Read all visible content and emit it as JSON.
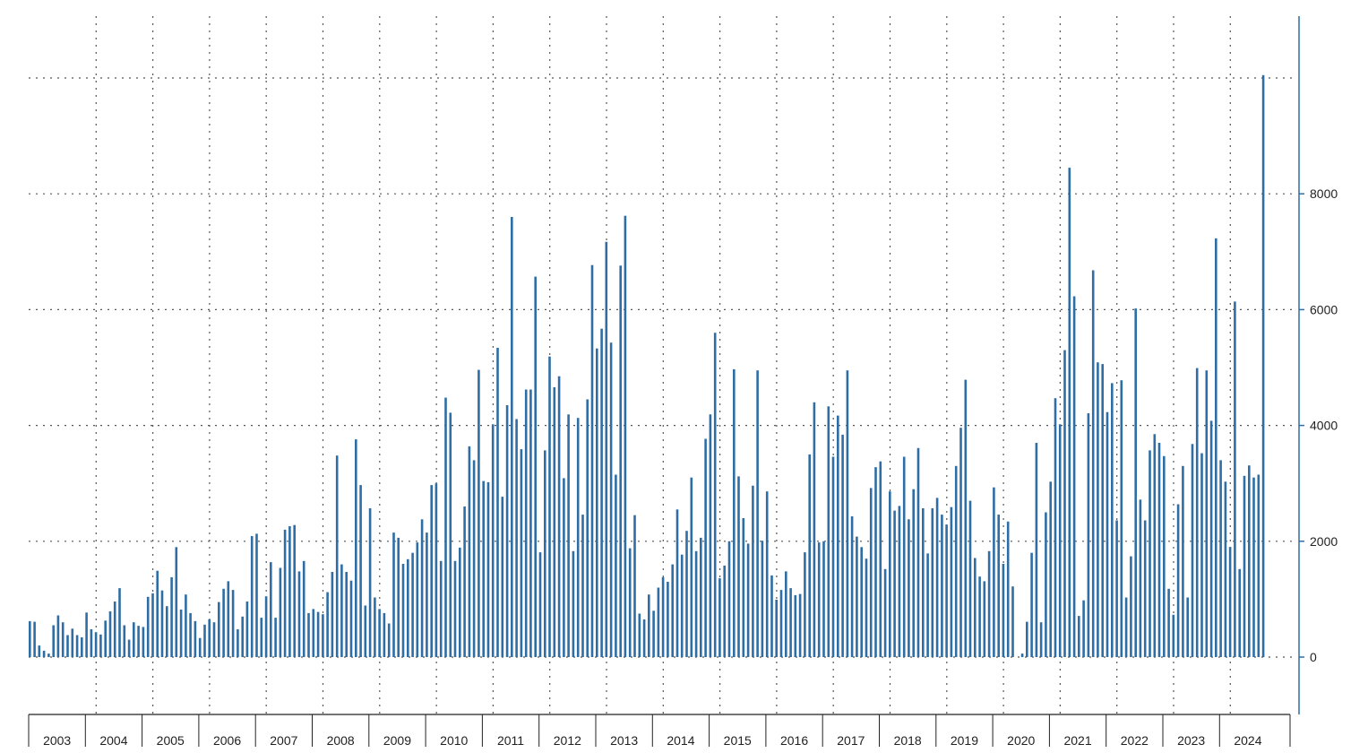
{
  "chart_data": {
    "type": "bar",
    "title": "",
    "xlabel": "",
    "ylabel": "",
    "ylim": [
      -1000,
      11000
    ],
    "y_ticks": [
      0,
      2000,
      4000,
      6000,
      8000
    ],
    "y_axis_side": "right",
    "grid": true,
    "legend": "none",
    "bar_color": "#2f6ea5",
    "years": [
      "2003",
      "2004",
      "2005",
      "2006",
      "2007",
      "2008",
      "2009",
      "2010",
      "2011",
      "2012",
      "2013",
      "2014",
      "2015",
      "2016",
      "2017",
      "2018",
      "2019",
      "2020",
      "2021",
      "2022",
      "2023",
      "2024"
    ],
    "series": [
      {
        "values": {
          "2003": [
            620,
            610,
            200,
            110,
            60,
            550,
            720,
            600,
            380,
            490,
            380,
            340
          ],
          "2004": [
            770,
            480,
            430,
            390,
            630,
            790,
            960,
            1190,
            550,
            300,
            600,
            540
          ],
          "2005": [
            520,
            1040,
            1100,
            1490,
            1150,
            880,
            1380,
            1900,
            820,
            1080,
            760,
            620
          ],
          "2006": [
            330,
            560,
            650,
            600,
            950,
            1180,
            1310,
            1160,
            480,
            700,
            960,
            2090
          ],
          "2007": [
            2130,
            680,
            1050,
            1640,
            680,
            1540,
            2200,
            2260,
            2280,
            1480,
            1660,
            760
          ],
          "2008": [
            830,
            780,
            740,
            1120,
            1470,
            3480,
            1600,
            1470,
            1320,
            3760,
            2970,
            890
          ],
          "2009": [
            2570,
            1030,
            830,
            760,
            580,
            2150,
            2060,
            1610,
            1690,
            1800,
            1980,
            2380
          ],
          "2010": [
            2150,
            2970,
            3000,
            1660,
            4480,
            4220,
            1660,
            1890,
            2600,
            3640,
            3400,
            4960
          ],
          "2011": [
            3040,
            3020,
            4020,
            5340,
            2770,
            4350,
            7600,
            4110,
            3590,
            4620,
            4620,
            6570
          ],
          "2012": [
            1810,
            3570,
            5190,
            4660,
            4850,
            3090,
            4190,
            1830,
            4130,
            2460,
            4450,
            6770
          ],
          "2013": [
            5330,
            5670,
            7170,
            5430,
            3150,
            6760,
            7620,
            1880,
            2450,
            750,
            650,
            1080
          ],
          "2014": [
            800,
            1200,
            1380,
            1300,
            1600,
            2550,
            1770,
            2180,
            3100,
            1830,
            2060,
            3770
          ],
          "2015": [
            4190,
            5600,
            1360,
            1580,
            2000,
            4970,
            3120,
            2400,
            1960,
            2960,
            4950,
            2010
          ]
        }
      }
    ]
  }
}
